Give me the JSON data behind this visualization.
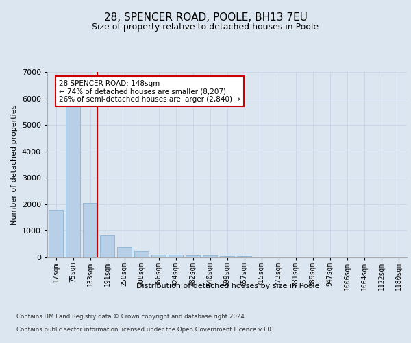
{
  "title": "28, SPENCER ROAD, POOLE, BH13 7EU",
  "subtitle": "Size of property relative to detached houses in Poole",
  "xlabel": "Distribution of detached houses by size in Poole",
  "ylabel": "Number of detached properties",
  "categories": [
    "17sqm",
    "75sqm",
    "133sqm",
    "191sqm",
    "250sqm",
    "308sqm",
    "366sqm",
    "424sqm",
    "482sqm",
    "540sqm",
    "599sqm",
    "657sqm",
    "715sqm",
    "773sqm",
    "831sqm",
    "889sqm",
    "947sqm",
    "1006sqm",
    "1064sqm",
    "1122sqm",
    "1180sqm"
  ],
  "values": [
    1780,
    5820,
    2060,
    820,
    380,
    230,
    110,
    110,
    65,
    70,
    55,
    60,
    0,
    0,
    0,
    0,
    0,
    0,
    0,
    0,
    0
  ],
  "bar_color": "#b8cfe8",
  "bar_edge_color": "#7aadd4",
  "highlight_bar_index": 1,
  "highlight_color": "#a0b8d8",
  "vline_color": "#cc0000",
  "annotation_text": "28 SPENCER ROAD: 148sqm\n← 74% of detached houses are smaller (8,207)\n26% of semi-detached houses are larger (2,840) →",
  "annotation_box_color": "#ffffff",
  "annotation_border_color": "#cc0000",
  "ylim": [
    0,
    7000
  ],
  "yticks": [
    0,
    1000,
    2000,
    3000,
    4000,
    5000,
    6000,
    7000
  ],
  "grid_color": "#c8d4e8",
  "background_color": "#dce6f0",
  "axes_background": "#dce6f0",
  "footer_line1": "Contains HM Land Registry data © Crown copyright and database right 2024.",
  "footer_line2": "Contains public sector information licensed under the Open Government Licence v3.0.",
  "title_fontsize": 11,
  "subtitle_fontsize": 9,
  "tick_fontsize": 7,
  "ylabel_fontsize": 8,
  "xlabel_fontsize": 8,
  "annot_fontsize": 7.5
}
